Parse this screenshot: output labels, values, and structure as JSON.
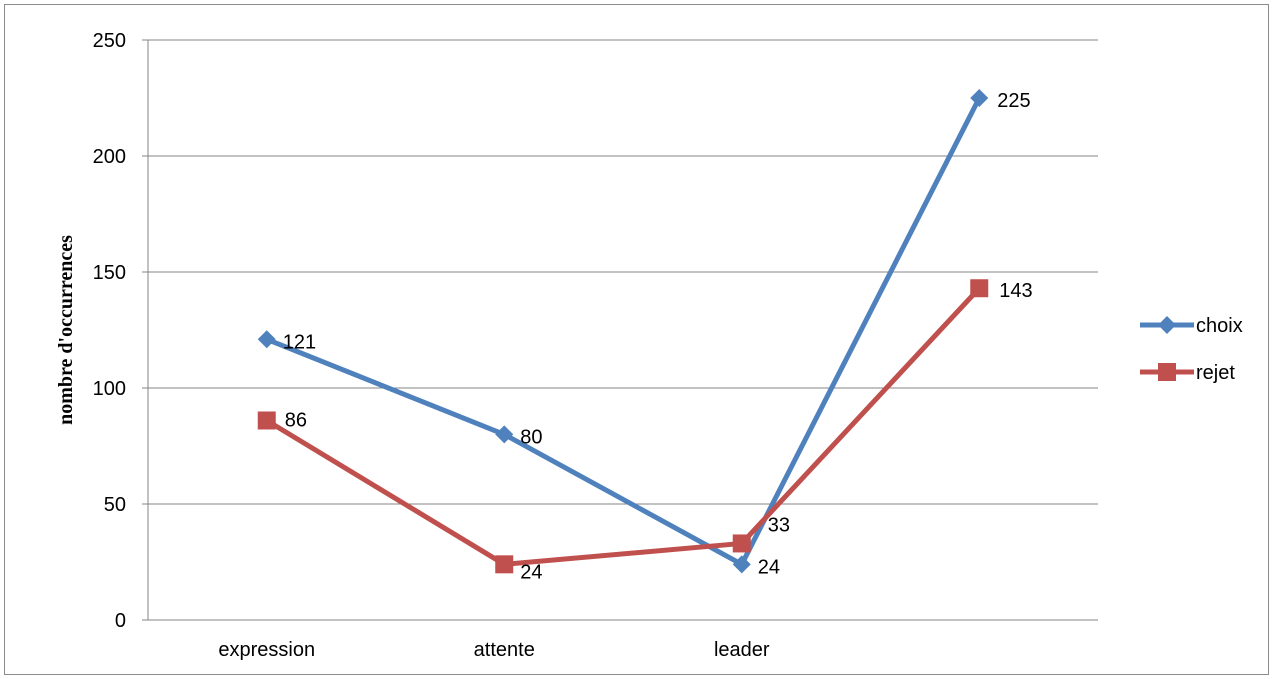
{
  "chart_data": {
    "type": "line",
    "title": "",
    "xlabel": "",
    "ylabel": "nombre d'occurrences",
    "categories": [
      "expression",
      "attente",
      "leader",
      ""
    ],
    "ylim": [
      0,
      250
    ],
    "yticks": [
      "0",
      "50",
      "100",
      "150",
      "200",
      "250"
    ],
    "ytick_values": [
      0,
      50,
      100,
      150,
      200,
      250
    ],
    "grid": true,
    "legend_position": "right",
    "series": [
      {
        "name": "choix",
        "values": [
          121,
          80,
          24,
          225
        ],
        "labels": [
          "121",
          "80",
          "24",
          "225"
        ],
        "color": "#4f81bd",
        "marker": "diamond"
      },
      {
        "name": "rejet",
        "values": [
          86,
          24,
          33,
          143
        ],
        "labels": [
          "86",
          "24",
          "33",
          "143"
        ],
        "color": "#c0504d",
        "marker": "square"
      }
    ]
  }
}
